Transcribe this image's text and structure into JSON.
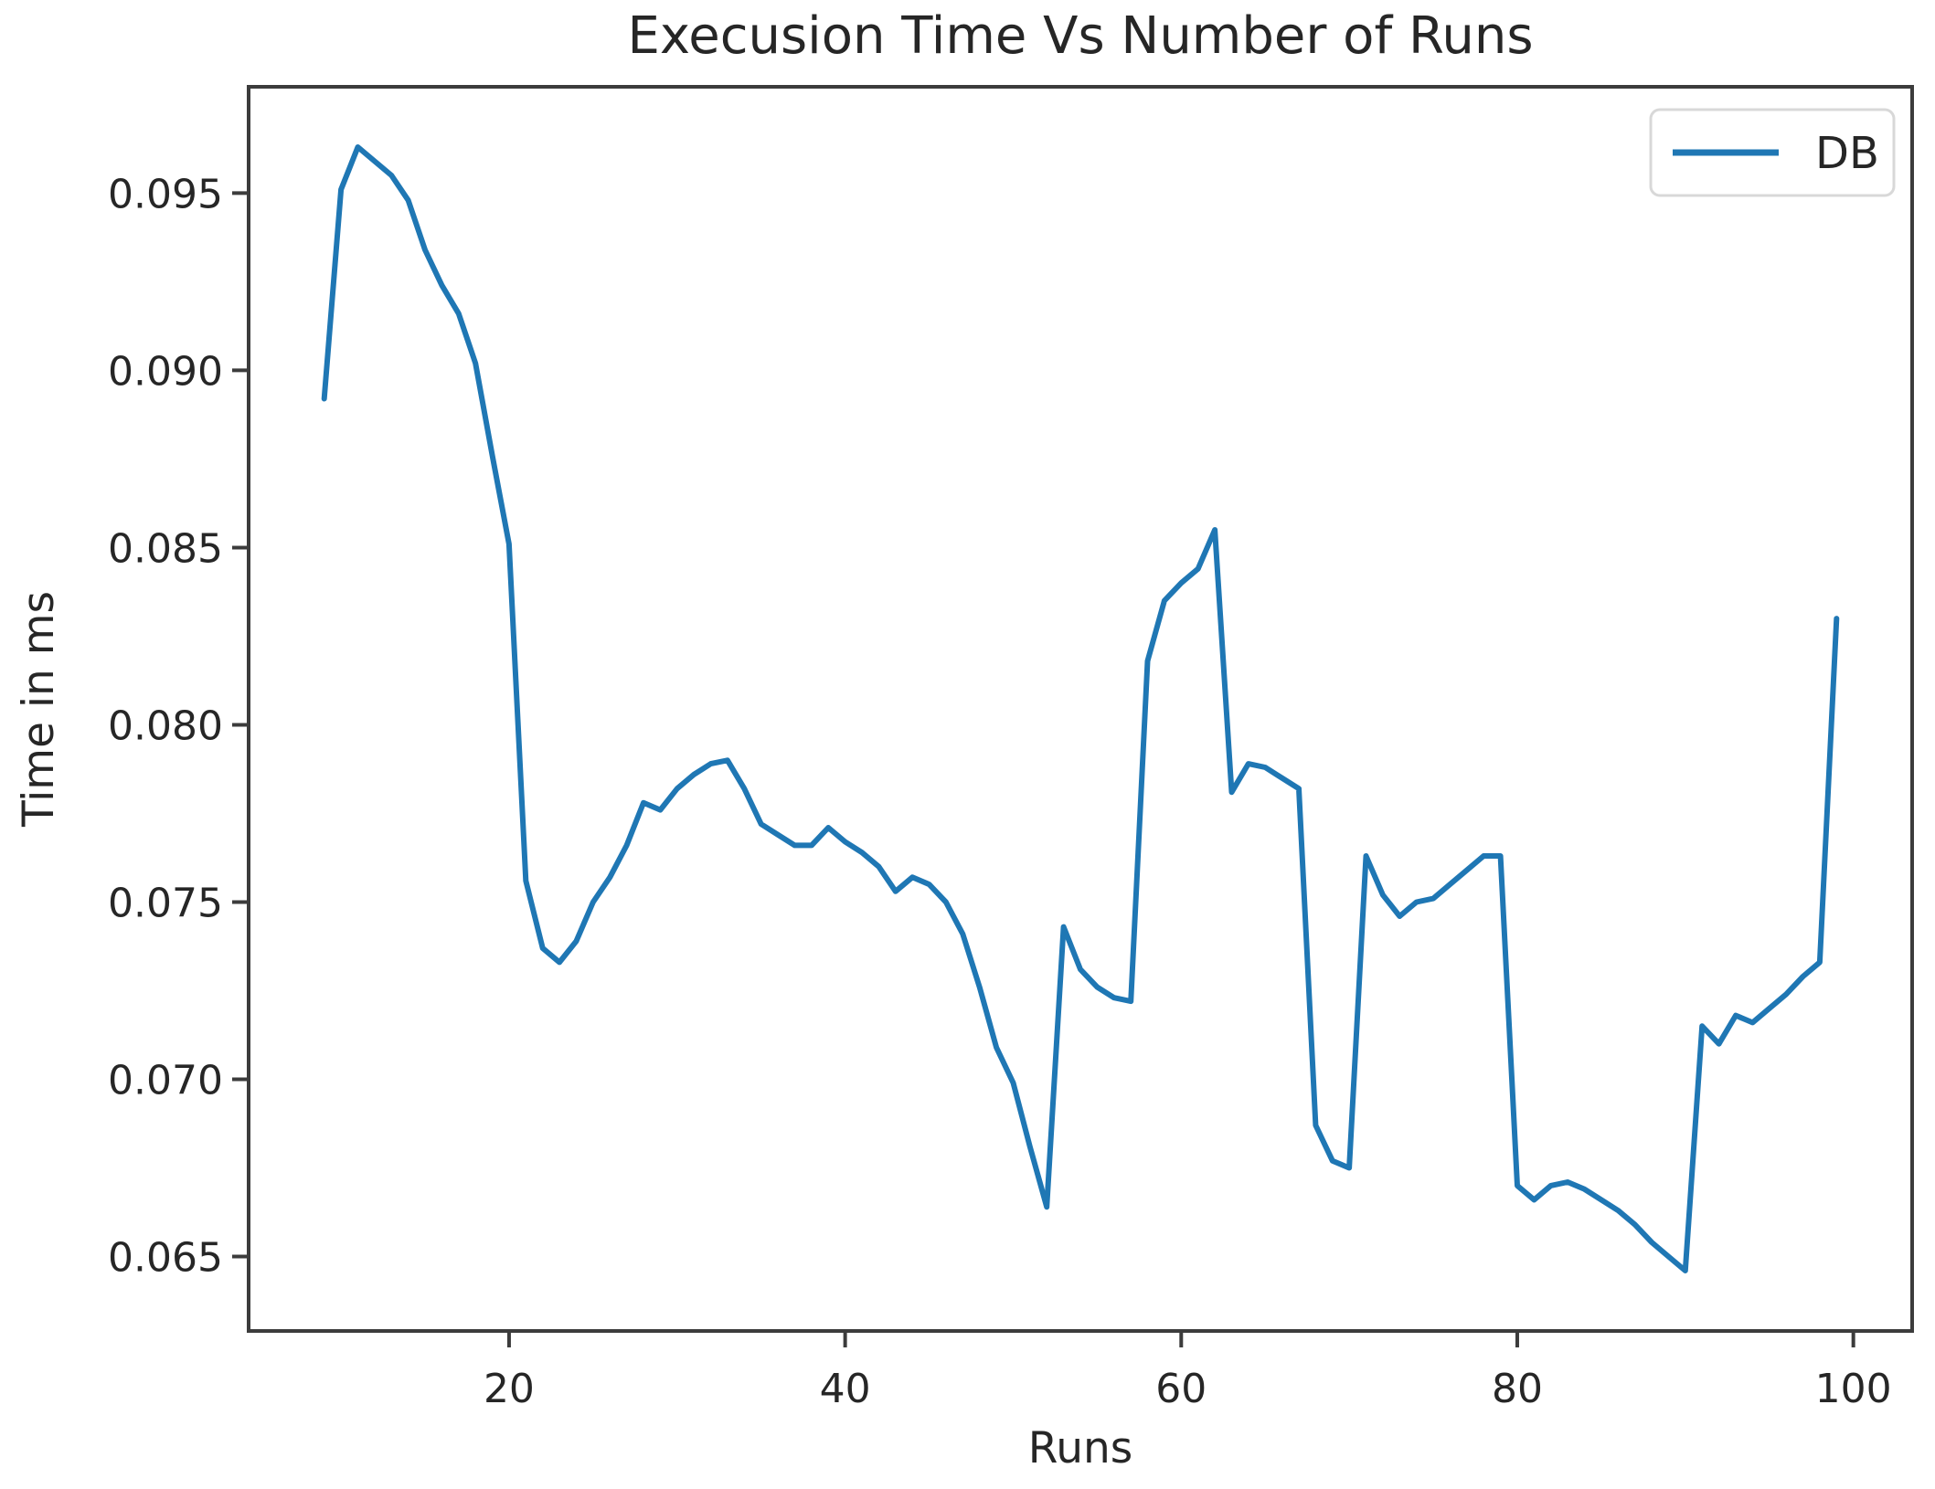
{
  "chart_data": {
    "type": "line",
    "title": "Execusion Time Vs Number of Runs",
    "xlabel": "Runs",
    "ylabel": "Time in ms",
    "grid": false,
    "legend_position": "upper right",
    "xlim": [
      4.5,
      103.5
    ],
    "ylim": [
      0.0629,
      0.098
    ],
    "xticks": [
      20,
      40,
      60,
      80,
      100
    ],
    "yticks": [
      0.065,
      0.07,
      0.075,
      0.08,
      0.085,
      0.09,
      0.095
    ],
    "axis_color": "#3c3c3c",
    "series": [
      {
        "name": "DB",
        "color": "#1f77b4",
        "x": [
          9,
          10,
          11,
          12,
          13,
          14,
          15,
          16,
          17,
          18,
          19,
          20,
          21,
          22,
          23,
          24,
          25,
          26,
          27,
          28,
          29,
          30,
          31,
          32,
          33,
          34,
          35,
          36,
          37,
          38,
          39,
          40,
          41,
          42,
          43,
          44,
          45,
          46,
          47,
          48,
          49,
          50,
          51,
          52,
          53,
          54,
          55,
          56,
          57,
          58,
          59,
          60,
          61,
          62,
          63,
          64,
          65,
          66,
          67,
          68,
          69,
          70,
          71,
          72,
          73,
          74,
          75,
          76,
          77,
          78,
          79,
          80,
          81,
          82,
          83,
          84,
          85,
          86,
          87,
          88,
          89,
          90,
          91,
          92,
          93,
          94,
          95,
          96,
          97,
          98,
          99
        ],
        "values": [
          0.0892,
          0.0951,
          0.0963,
          0.0959,
          0.0955,
          0.0948,
          0.0934,
          0.0924,
          0.0916,
          0.0902,
          0.0876,
          0.0851,
          0.0756,
          0.0737,
          0.0733,
          0.0739,
          0.075,
          0.0757,
          0.0766,
          0.0778,
          0.0776,
          0.0782,
          0.0786,
          0.0789,
          0.079,
          0.0782,
          0.0772,
          0.0769,
          0.0766,
          0.0766,
          0.0771,
          0.0767,
          0.0764,
          0.076,
          0.0753,
          0.0757,
          0.0755,
          0.075,
          0.0741,
          0.0726,
          0.0709,
          0.0699,
          0.0681,
          0.0664,
          0.0743,
          0.0731,
          0.0726,
          0.0723,
          0.0722,
          0.0818,
          0.0835,
          0.084,
          0.0844,
          0.0855,
          0.0781,
          0.0789,
          0.0788,
          0.0785,
          0.0782,
          0.0687,
          0.0677,
          0.0675,
          0.0763,
          0.0752,
          0.0746,
          0.075,
          0.0751,
          0.0755,
          0.0759,
          0.0763,
          0.0763,
          0.067,
          0.0666,
          0.067,
          0.0671,
          0.0669,
          0.0666,
          0.0663,
          0.0659,
          0.0654,
          0.065,
          0.0646,
          0.0715,
          0.071,
          0.0718,
          0.0716,
          0.072,
          0.0724,
          0.0729,
          0.0733,
          0.083
        ]
      }
    ]
  }
}
